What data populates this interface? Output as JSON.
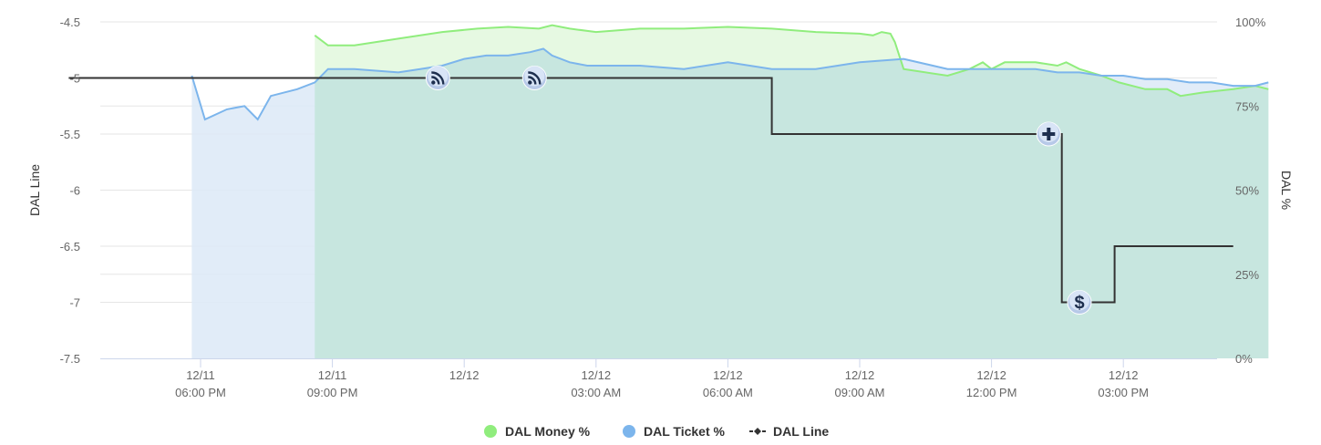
{
  "chart_data": {
    "type": "line",
    "title": "",
    "y_left": {
      "label": "DAL Line",
      "ticks": [
        "-4.5",
        "-5",
        "-5.5",
        "-6",
        "-6.5",
        "-7",
        "-7.5"
      ],
      "values": [
        -4.5,
        -5,
        -5.5,
        -6,
        -6.5,
        -7,
        -7.5
      ],
      "range": [
        -7.5,
        -4.5
      ]
    },
    "y_right": {
      "label": "DAL %",
      "ticks": [
        "100%",
        "75%",
        "50%",
        "25%",
        "0%"
      ],
      "values": [
        100,
        75,
        50,
        25,
        0
      ],
      "range": [
        0,
        100
      ]
    },
    "x_axis": {
      "range_hours": [
        15.0,
        39.0
      ],
      "ticks": [
        {
          "hour": 18,
          "date": "12/11",
          "time": "06:00 PM"
        },
        {
          "hour": 21,
          "date": "12/11",
          "time": "09:00 PM"
        },
        {
          "hour": 24,
          "date": "12/12",
          "time": ""
        },
        {
          "hour": 27,
          "date": "12/12",
          "time": "03:00 AM"
        },
        {
          "hour": 30,
          "date": "12/12",
          "time": "06:00 AM"
        },
        {
          "hour": 33,
          "date": "12/12",
          "time": "09:00 AM"
        },
        {
          "hour": 36,
          "date": "12/12",
          "time": "12:00 PM"
        },
        {
          "hour": 39,
          "date": "12/12",
          "time": "03:00 PM"
        }
      ]
    },
    "grid": true,
    "legend_position": "bottom-center",
    "series": [
      {
        "name": "DAL Money %",
        "axis": "right",
        "type": "area",
        "color": "#90ed7d",
        "fill": "#e2f8dd",
        "points": [
          [
            20.6,
            96
          ],
          [
            20.9,
            93
          ],
          [
            21.5,
            93
          ],
          [
            22.5,
            95
          ],
          [
            23.5,
            97
          ],
          [
            24.3,
            98
          ],
          [
            25.0,
            98.5
          ],
          [
            25.7,
            98
          ],
          [
            26.0,
            99
          ],
          [
            26.4,
            98
          ],
          [
            27.0,
            97
          ],
          [
            28.0,
            98
          ],
          [
            29.0,
            98
          ],
          [
            30.0,
            98.5
          ],
          [
            31.0,
            98
          ],
          [
            32.0,
            97
          ],
          [
            33.0,
            96.5
          ],
          [
            33.3,
            96
          ],
          [
            33.5,
            97
          ],
          [
            33.7,
            96.5
          ],
          [
            33.8,
            94
          ],
          [
            34.0,
            86
          ],
          [
            35.0,
            84
          ],
          [
            35.5,
            86
          ],
          [
            35.8,
            88
          ],
          [
            36.0,
            86
          ],
          [
            36.3,
            88
          ],
          [
            37.0,
            88
          ],
          [
            37.5,
            87
          ],
          [
            37.7,
            88
          ],
          [
            38.0,
            86
          ],
          [
            38.5,
            84
          ],
          [
            38.9,
            82
          ],
          [
            39.5,
            80
          ],
          [
            40.0,
            80
          ],
          [
            40.3,
            78
          ],
          [
            40.8,
            79
          ],
          [
            41.5,
            80
          ],
          [
            42.0,
            81
          ],
          [
            42.3,
            80
          ]
        ]
      },
      {
        "name": "DAL Ticket %",
        "axis": "right",
        "type": "area",
        "color": "#7cb5ec",
        "fill": "#dce9f7",
        "points": [
          [
            17.8,
            84
          ],
          [
            18.1,
            71
          ],
          [
            18.6,
            74
          ],
          [
            19.0,
            75
          ],
          [
            19.3,
            71
          ],
          [
            19.6,
            78
          ],
          [
            20.2,
            80
          ],
          [
            20.6,
            82
          ],
          [
            20.9,
            86
          ],
          [
            21.5,
            86
          ],
          [
            22.5,
            85
          ],
          [
            23.0,
            86
          ],
          [
            23.5,
            87
          ],
          [
            24.0,
            89
          ],
          [
            24.5,
            90
          ],
          [
            25.0,
            90
          ],
          [
            25.5,
            91
          ],
          [
            25.8,
            92
          ],
          [
            26.0,
            90
          ],
          [
            26.4,
            88
          ],
          [
            26.8,
            87
          ],
          [
            27.0,
            87
          ],
          [
            28.0,
            87
          ],
          [
            29.0,
            86
          ],
          [
            30.0,
            88
          ],
          [
            31.0,
            86
          ],
          [
            32.0,
            86
          ],
          [
            33.0,
            88
          ],
          [
            34.0,
            89
          ],
          [
            35.0,
            86
          ],
          [
            35.5,
            86
          ],
          [
            36.0,
            86
          ],
          [
            37.0,
            86
          ],
          [
            37.5,
            85
          ],
          [
            38.0,
            85
          ],
          [
            38.5,
            84
          ],
          [
            39.0,
            84
          ],
          [
            39.5,
            83
          ],
          [
            40.0,
            83
          ],
          [
            40.5,
            82
          ],
          [
            41.0,
            82
          ],
          [
            41.5,
            81
          ],
          [
            42.0,
            81
          ],
          [
            42.3,
            82
          ]
        ]
      },
      {
        "name": "DAL Line",
        "axis": "left",
        "type": "step",
        "color": "#333333",
        "points": [
          [
            15.0,
            -5
          ],
          [
            31.0,
            -5
          ],
          [
            31.0,
            -5.5
          ],
          [
            37.6,
            -5.5
          ],
          [
            37.6,
            -7
          ],
          [
            38.8,
            -7
          ],
          [
            38.8,
            -6.5
          ],
          [
            41.5,
            -6.5
          ]
        ]
      }
    ],
    "markers": [
      {
        "icon": "rss-icon",
        "hour": 23.4,
        "value": -5
      },
      {
        "icon": "rss-icon",
        "hour": 25.6,
        "value": -5
      },
      {
        "icon": "plus-icon",
        "hour": 37.3,
        "value": -5.5
      },
      {
        "icon": "dollar-icon",
        "hour": 38.0,
        "value": -7
      }
    ]
  },
  "legend": [
    {
      "label": "DAL Money %",
      "color": "#90ed7d",
      "symbol": "circle"
    },
    {
      "label": "DAL Ticket %",
      "color": "#7cb5ec",
      "symbol": "circle"
    },
    {
      "label": "DAL Line",
      "color": "#333333",
      "symbol": "line-diamond"
    }
  ]
}
